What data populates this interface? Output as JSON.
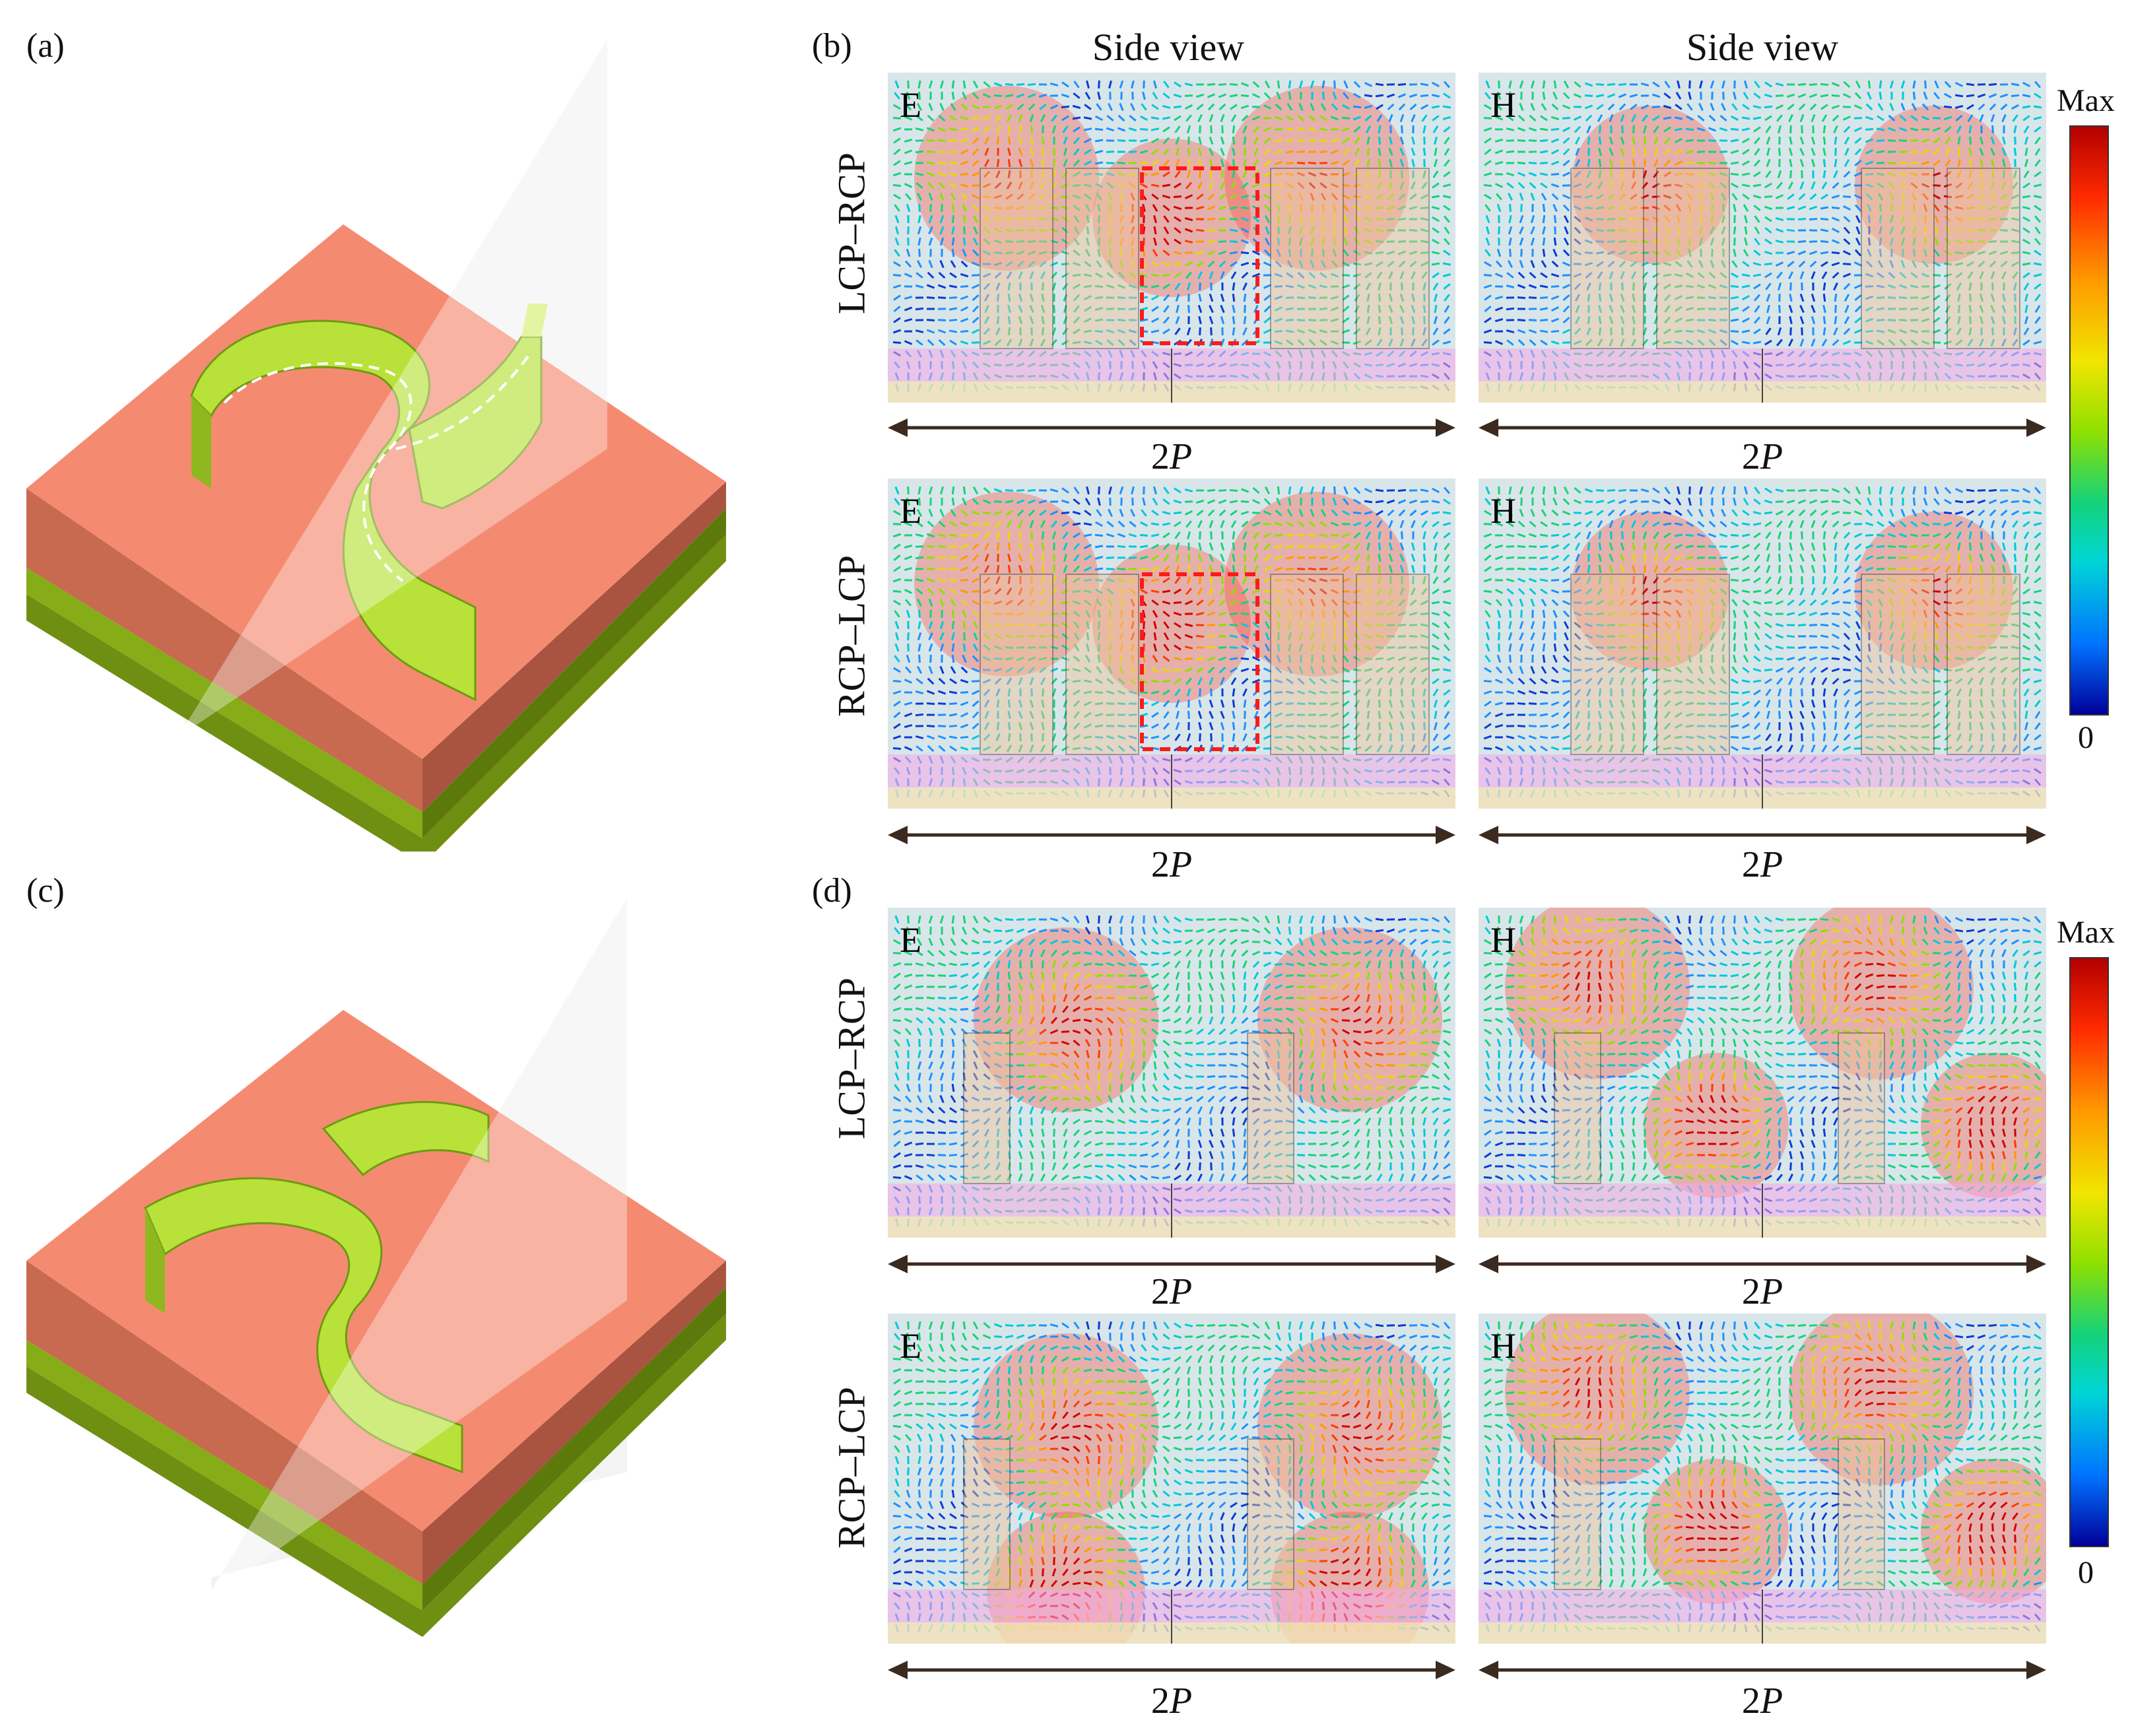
{
  "figure": {
    "panel_labels": [
      "(a)",
      "(b)",
      "(c)",
      "(d)"
    ],
    "column_headers": [
      "Side view",
      "Side view"
    ],
    "row_labels": [
      "LCP–RCP",
      "RCP–LCP",
      "LCP–RCP",
      "RCP–LCP"
    ],
    "field_labels": [
      "E",
      "H"
    ],
    "period_label_prefix": "2",
    "period_label_symbol": "P",
    "colorbar": {
      "max_label": "Max",
      "min_label": "0"
    },
    "colors": {
      "substrate_top": "#f28a6e",
      "metal_layer": "#7aa21a",
      "resonator": "#b8e23a",
      "field_high": "#e8171a",
      "field_low": "#1e90ff",
      "highlight_box": "#ff1a1a"
    }
  }
}
